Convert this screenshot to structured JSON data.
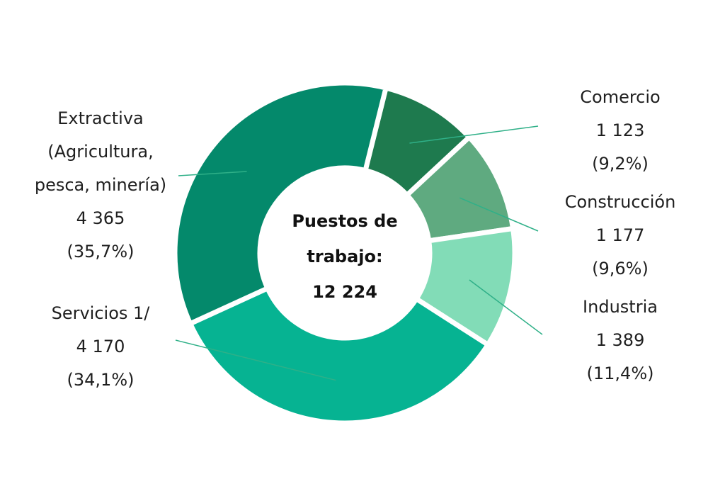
{
  "chart_data": {
    "type": "pie",
    "variant": "donut",
    "center_label": [
      "Puestos de",
      "trabajo:",
      "12 224"
    ],
    "total": 12224,
    "slices": [
      {
        "key": "comercio",
        "label_lines": [
          "Comercio"
        ],
        "value": 1123,
        "value_label": "1 123",
        "percent": 9.2,
        "percent_label": "(9,2%)",
        "color": "#1E7A4E"
      },
      {
        "key": "construccion",
        "label_lines": [
          "Construcción"
        ],
        "value": 1177,
        "value_label": "1 177",
        "percent": 9.6,
        "percent_label": "(9,6%)",
        "color": "#5FAA80"
      },
      {
        "key": "industria",
        "label_lines": [
          "Industria"
        ],
        "value": 1389,
        "value_label": "1 389",
        "percent": 11.4,
        "percent_label": "(11,4%)",
        "color": "#82DCB7"
      },
      {
        "key": "servicios",
        "label_lines": [
          "Servicios 1/"
        ],
        "value": 4170,
        "value_label": "4 170",
        "percent": 34.1,
        "percent_label": "(34,1%)",
        "color": "#06B392"
      },
      {
        "key": "extractiva",
        "label_lines": [
          "Extractiva",
          "(Agricultura,",
          "pesca, minería)"
        ],
        "value": 4365,
        "value_label": "4 365",
        "percent": 35.7,
        "percent_label": "(35,7%)",
        "color": "#04896B"
      }
    ],
    "leader_color": "#2fb088"
  }
}
